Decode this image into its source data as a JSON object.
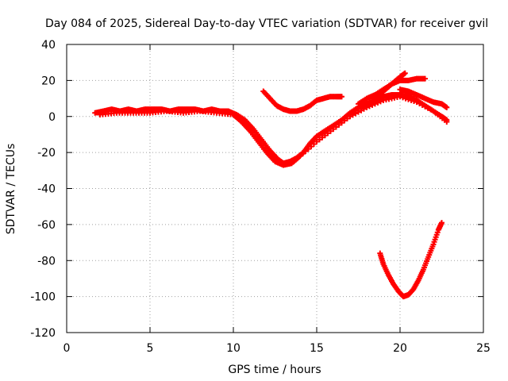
{
  "chart_data": {
    "type": "scatter",
    "title": "Day 084 of 2025, Sidereal Day-to-day VTEC variation (SDTVAR) for receiver gvil",
    "xlabel": "GPS time / hours",
    "ylabel": "SDTVAR / TECUs",
    "xlim": [
      0,
      25
    ],
    "ylim": [
      -120,
      40
    ],
    "xticks": [
      "0",
      "5",
      "10",
      "15",
      "20",
      "25"
    ],
    "yticks": [
      "40",
      "20",
      "0",
      "-20",
      "-40",
      "-60",
      "-80",
      "-100",
      "-120"
    ],
    "grid": true,
    "marker": "plus",
    "series_color": "#ff0000",
    "series": [
      {
        "x": [
          1.7,
          2.2,
          2.7,
          3.2,
          3.7,
          4.2,
          4.7,
          5.2,
          5.7,
          6.2,
          6.7,
          7.2,
          7.7,
          8.2,
          8.7,
          9.2,
          9.7,
          10.2,
          10.7,
          11.2,
          11.7,
          12.2,
          12.7,
          13.0,
          13.4,
          13.8,
          14.2,
          14.6,
          15.0,
          15.5,
          16.0,
          16.5,
          17.0,
          17.5,
          18.0,
          18.5,
          19.0,
          19.5,
          20.0,
          20.5,
          21.0,
          21.5,
          22.0,
          22.5,
          22.8
        ],
        "y": [
          2,
          3,
          4,
          3,
          4,
          3,
          4,
          4,
          4,
          3,
          4,
          4,
          4,
          3,
          4,
          3,
          3,
          1,
          -2,
          -7,
          -13,
          -19,
          -24,
          -26,
          -25,
          -23,
          -20,
          -15,
          -11,
          -8,
          -5,
          -2,
          2,
          5,
          7,
          9,
          11,
          12,
          12,
          11,
          9,
          6,
          3,
          0,
          -2
        ]
      },
      {
        "x": [
          2.0,
          3.0,
          4.0,
          5.0,
          6.0,
          7.0,
          8.0,
          9.0,
          10.0,
          10.5,
          11.0,
          11.5,
          12.0,
          12.5,
          13.0,
          13.5,
          14.0,
          15.0,
          16.0,
          17.0,
          18.0,
          19.0,
          20.0,
          21.0,
          22.0,
          22.8
        ],
        "y": [
          1,
          2,
          2,
          2,
          3,
          2,
          3,
          2,
          1,
          -3,
          -8,
          -14,
          -20,
          -25,
          -27,
          -26,
          -22,
          -14,
          -7,
          0,
          5,
          9,
          11,
          8,
          3,
          -3
        ]
      },
      {
        "x": [
          11.8,
          12.2,
          12.6,
          13.0,
          13.4,
          13.8,
          14.2,
          14.6,
          15.0,
          15.4,
          15.8,
          16.2,
          16.5
        ],
        "y": [
          14,
          10,
          6,
          4,
          3,
          3,
          4,
          6,
          9,
          10,
          11,
          11,
          11
        ]
      },
      {
        "x": [
          17.5,
          18.0,
          18.5,
          19.0,
          19.5,
          20.0,
          20.5,
          21.0,
          21.5
        ],
        "y": [
          7,
          10,
          12,
          15,
          18,
          20,
          20,
          21,
          21
        ]
      },
      {
        "x": [
          18.5,
          19.0,
          19.5,
          20.0,
          20.3
        ],
        "y": [
          10,
          14,
          18,
          22,
          24
        ]
      },
      {
        "x": [
          20.0,
          20.5,
          21.0,
          21.5,
          22.0,
          22.5,
          22.8
        ],
        "y": [
          15,
          14,
          12,
          10,
          8,
          7,
          5
        ]
      },
      {
        "x": [
          18.8,
          19.0,
          19.3,
          19.6,
          19.9,
          20.2,
          20.5,
          20.8,
          21.1,
          21.4,
          21.7,
          22.0,
          22.3,
          22.5
        ],
        "y": [
          -76,
          -82,
          -88,
          -93,
          -97,
          -100,
          -99,
          -96,
          -91,
          -85,
          -78,
          -71,
          -63,
          -59
        ]
      }
    ]
  }
}
